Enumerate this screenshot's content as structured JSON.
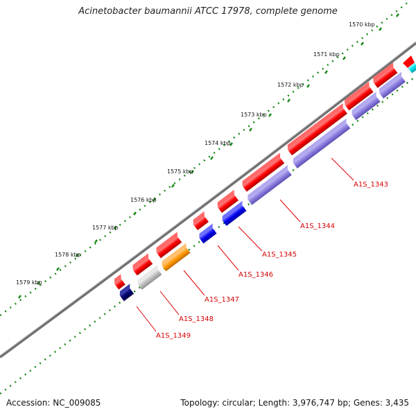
{
  "title": "Acinetobacter baumannii ATCC 17978, complete genome",
  "footer": {
    "accession": "Accession: NC_009085",
    "summary": "Topology: circular; Length: 3,976,747 bp; Genes: 3,435"
  },
  "ruler": {
    "labels": [
      "1570 kbp",
      "1571 kbp",
      "1572 kbp",
      "1573 kbp",
      "1574 kbp",
      "1575 kbp",
      "1576 kbp",
      "1577 kbp",
      "1578 kbp",
      "1579 kbp"
    ]
  },
  "genes": [
    {
      "label": "A1S_1343"
    },
    {
      "label": "A1S_1344"
    },
    {
      "label": "A1S_1345"
    },
    {
      "label": "A1S_1346"
    },
    {
      "label": "A1S_1347"
    },
    {
      "label": "A1S_1348"
    },
    {
      "label": "A1S_1349"
    }
  ],
  "colors": {
    "backbone": "#808080",
    "ticks": "#1a8a1a",
    "cds": "#ff0000",
    "label_text": "#d40000",
    "leader_line": "#e00000",
    "cog_purple": "#8a7ee0",
    "cog_blue": "#0000ee",
    "cog_orange": "#ff9900",
    "cog_gray": "#c0c0c0",
    "cog_navy": "#00006e",
    "cog_cyan": "#00e5ee"
  }
}
